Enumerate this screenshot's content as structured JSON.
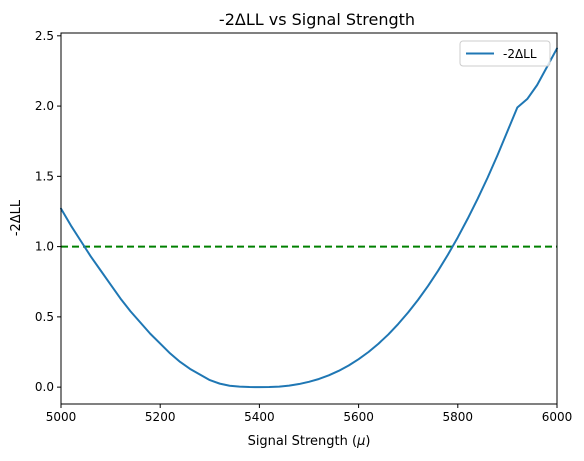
{
  "chart_data": {
    "type": "line",
    "title": "-2ΔLL vs Signal Strength",
    "xlabel_text": "Signal Strength (",
    "xlabel_symbol": "μ",
    "xlabel_close": ")",
    "ylabel": "-2ΔLL",
    "xlim": [
      5000,
      6000
    ],
    "ylim": [
      -0.12,
      2.52
    ],
    "x_ticks": [
      "5000",
      "5200",
      "5400",
      "5600",
      "5800",
      "6000"
    ],
    "y_ticks": [
      "0.0",
      "0.5",
      "1.0",
      "1.5",
      "2.0",
      "2.5"
    ],
    "grid": false,
    "legend_position": "top-right",
    "series": [
      {
        "name": "-2ΔLL",
        "color": "#1f77b4",
        "x": [
          5000,
          5020,
          5040,
          5060,
          5080,
          5100,
          5120,
          5140,
          5160,
          5180,
          5200,
          5220,
          5240,
          5260,
          5280,
          5300,
          5320,
          5340,
          5360,
          5380,
          5400,
          5420,
          5440,
          5460,
          5480,
          5500,
          5520,
          5540,
          5560,
          5580,
          5600,
          5620,
          5640,
          5660,
          5680,
          5700,
          5720,
          5740,
          5760,
          5780,
          5800,
          5820,
          5840,
          5860,
          5880,
          5900,
          5920,
          5940,
          5960,
          5980,
          6000
        ],
        "y": [
          1.27,
          1.15,
          1.04,
          0.93,
          0.83,
          0.73,
          0.63,
          0.54,
          0.46,
          0.38,
          0.31,
          0.24,
          0.18,
          0.13,
          0.09,
          0.05,
          0.025,
          0.01,
          0.004,
          0.001,
          0.0,
          0.001,
          0.004,
          0.011,
          0.022,
          0.038,
          0.058,
          0.084,
          0.116,
          0.154,
          0.199,
          0.25,
          0.309,
          0.375,
          0.45,
          0.532,
          0.622,
          0.72,
          0.827,
          0.942,
          1.066,
          1.199,
          1.34,
          1.49,
          1.65,
          1.82,
          1.99,
          2.05,
          2.15,
          2.28,
          2.41
        ]
      }
    ],
    "reference_lines": [
      {
        "y": 1.0,
        "color": "#008000",
        "style": "dashed"
      }
    ]
  }
}
